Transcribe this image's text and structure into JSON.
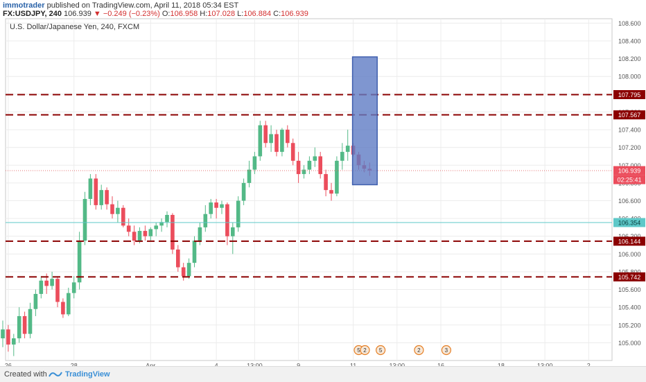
{
  "header": {
    "author": "immotrader",
    "published": "published on TradingView.com, April 11, 2018 05:34 EST",
    "symbol": "FX:USDJPY, 240",
    "price": "106.939",
    "change": "−0.249 (−0.23%)",
    "o_label": "O:",
    "o_val": "106.958",
    "h_label": "H:",
    "h_val": "107.028",
    "l_label": "L:",
    "l_val": "106.884",
    "c_label": "C:",
    "c_val": "106.939"
  },
  "chart_data": {
    "type": "candlestick",
    "title": "U.S. Dollar/Japanese Yen, 240, FXCM",
    "ylim": [
      104.8,
      108.65
    ],
    "y_ticks": [
      "108.600",
      "108.400",
      "108.200",
      "108.000",
      "107.800",
      "107.600",
      "107.400",
      "107.200",
      "107.000",
      "106.800",
      "106.600",
      "106.400",
      "106.200",
      "106.000",
      "105.800",
      "105.600",
      "105.400",
      "105.200",
      "105.000"
    ],
    "x_ticks": [
      {
        "label": "26",
        "index": 1
      },
      {
        "label": "28",
        "index": 13
      },
      {
        "label": "Apr",
        "index": 27
      },
      {
        "label": "4",
        "index": 39
      },
      {
        "label": "13:00",
        "index": 46
      },
      {
        "label": "9",
        "index": 54
      },
      {
        "label": "11",
        "index": 64
      },
      {
        "label": "13:00",
        "index": 72
      },
      {
        "label": "16",
        "index": 80
      },
      {
        "label": "18",
        "index": 91
      },
      {
        "label": "13:00",
        "index": 99
      },
      {
        "label": "2",
        "index": 107
      }
    ],
    "candles": [
      [
        105.05,
        105.25,
        104.95,
        105.15
      ],
      [
        105.15,
        105.2,
        104.9,
        104.98
      ],
      [
        104.98,
        105.1,
        104.85,
        105.05
      ],
      [
        105.05,
        105.4,
        105.0,
        105.3
      ],
      [
        105.3,
        105.35,
        105.05,
        105.1
      ],
      [
        105.1,
        105.45,
        105.05,
        105.38
      ],
      [
        105.38,
        105.6,
        105.3,
        105.55
      ],
      [
        105.55,
        105.75,
        105.5,
        105.7
      ],
      [
        105.7,
        105.78,
        105.55,
        105.64
      ],
      [
        105.64,
        105.8,
        105.6,
        105.72
      ],
      [
        105.72,
        105.75,
        105.4,
        105.46
      ],
      [
        105.46,
        105.5,
        105.28,
        105.32
      ],
      [
        105.32,
        105.62,
        105.3,
        105.56
      ],
      [
        105.56,
        105.75,
        105.5,
        105.68
      ],
      [
        105.68,
        106.25,
        105.6,
        106.15
      ],
      [
        106.15,
        106.7,
        106.1,
        106.62
      ],
      [
        106.62,
        106.9,
        106.55,
        106.85
      ],
      [
        106.85,
        106.9,
        106.5,
        106.55
      ],
      [
        106.55,
        106.78,
        106.5,
        106.72
      ],
      [
        106.72,
        106.75,
        106.5,
        106.56
      ],
      [
        106.56,
        106.65,
        106.4,
        106.45
      ],
      [
        106.45,
        106.6,
        106.35,
        106.52
      ],
      [
        106.52,
        106.55,
        106.3,
        106.32
      ],
      [
        106.32,
        106.4,
        106.2,
        106.25
      ],
      [
        106.25,
        106.32,
        106.1,
        106.15
      ],
      [
        106.15,
        106.3,
        106.12,
        106.26
      ],
      [
        106.26,
        106.32,
        106.15,
        106.2
      ],
      [
        106.2,
        106.3,
        106.15,
        106.28
      ],
      [
        106.28,
        106.35,
        106.2,
        106.32
      ],
      [
        106.32,
        106.4,
        106.25,
        106.36
      ],
      [
        106.36,
        106.48,
        106.3,
        106.44
      ],
      [
        106.44,
        106.46,
        106.0,
        106.05
      ],
      [
        106.05,
        106.1,
        105.8,
        105.85
      ],
      [
        105.85,
        105.9,
        105.7,
        105.75
      ],
      [
        105.75,
        105.95,
        105.72,
        105.9
      ],
      [
        105.9,
        106.2,
        105.85,
        106.15
      ],
      [
        106.15,
        106.35,
        106.1,
        106.3
      ],
      [
        106.3,
        106.55,
        106.25,
        106.45
      ],
      [
        106.45,
        106.62,
        106.4,
        106.58
      ],
      [
        106.58,
        106.62,
        106.4,
        106.52
      ],
      [
        106.52,
        106.6,
        106.45,
        106.56
      ],
      [
        106.56,
        106.58,
        106.1,
        106.2
      ],
      [
        106.2,
        106.35,
        106.0,
        106.3
      ],
      [
        106.3,
        106.65,
        106.25,
        106.6
      ],
      [
        106.6,
        106.85,
        106.55,
        106.8
      ],
      [
        106.8,
        107.05,
        106.75,
        106.95
      ],
      [
        106.95,
        107.15,
        106.9,
        107.1
      ],
      [
        107.1,
        107.5,
        107.05,
        107.45
      ],
      [
        107.45,
        107.5,
        107.2,
        107.25
      ],
      [
        107.25,
        107.45,
        107.15,
        107.35
      ],
      [
        107.35,
        107.4,
        107.1,
        107.15
      ],
      [
        107.15,
        107.42,
        107.1,
        107.4
      ],
      [
        107.4,
        107.45,
        107.2,
        107.25
      ],
      [
        107.25,
        107.3,
        107.0,
        107.05
      ],
      [
        107.05,
        107.15,
        106.8,
        106.9
      ],
      [
        106.9,
        107.0,
        106.85,
        106.95
      ],
      [
        106.95,
        107.1,
        106.9,
        107.05
      ],
      [
        107.05,
        107.2,
        106.98,
        107.1
      ],
      [
        107.1,
        107.15,
        106.85,
        106.9
      ],
      [
        106.9,
        106.95,
        106.65,
        106.72
      ],
      [
        106.72,
        106.8,
        106.6,
        106.68
      ],
      [
        106.68,
        107.1,
        106.65,
        107.05
      ],
      [
        107.05,
        107.25,
        106.95,
        107.15
      ],
      [
        107.15,
        107.4,
        107.05,
        107.22
      ],
      [
        107.22,
        107.25,
        107.1,
        107.12
      ],
      [
        107.12,
        107.15,
        106.95,
        107.0
      ],
      [
        107.0,
        107.05,
        106.92,
        106.96
      ],
      [
        106.96,
        107.03,
        106.88,
        106.94
      ]
    ],
    "horizontal_lines": [
      {
        "price": 107.795,
        "label": "107.795",
        "style": "dashed",
        "color": "#8b0000"
      },
      {
        "price": 107.567,
        "label": "107.567",
        "style": "dashed",
        "color": "#8b0000"
      },
      {
        "price": 106.144,
        "label": "106.144",
        "style": "dashed",
        "color": "#8b0000"
      },
      {
        "price": 105.742,
        "label": "105.742",
        "style": "dashed",
        "color": "#8b0000"
      },
      {
        "price": 106.354,
        "label": "106.354",
        "style": "solid",
        "color": "#5ec8c8"
      }
    ],
    "current_price": {
      "price": 106.939,
      "label": "106.939",
      "countdown": "02:25:41"
    },
    "rectangle": {
      "price_top": 108.22,
      "price_bottom": 106.78,
      "index_start": 64,
      "index_end": 68,
      "fill": "#5f7cc4"
    },
    "events": [
      {
        "index": 65,
        "label": "5",
        "label2": "2"
      },
      {
        "index": 69,
        "label": "5"
      },
      {
        "index": 76,
        "label": "2"
      },
      {
        "index": 81,
        "label": "3"
      }
    ],
    "colors": {
      "up": "#53b987",
      "down": "#eb4d5c",
      "grid": "#ececec"
    }
  },
  "footer": {
    "created": "Created with",
    "brand": "TradingView"
  }
}
